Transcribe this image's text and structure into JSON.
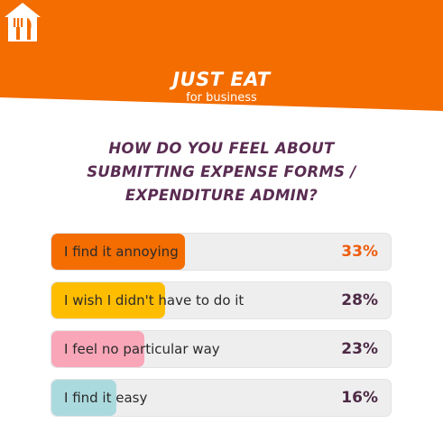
{
  "header": {
    "brand_name": "JUST EAT",
    "brand_sub": "for business",
    "banner_color": "#f36d00"
  },
  "question": {
    "lines": [
      "HOW DO YOU FEEL ABOUT",
      "SUBMITTING EXPENSE FORMS /",
      "EXPENDITURE ADMIN?"
    ]
  },
  "chart_data": {
    "type": "bar",
    "orientation": "horizontal",
    "title": "HOW DO YOU FEEL ABOUT SUBMITTING EXPENSE FORMS / EXPENDITURE ADMIN?",
    "categories": [
      "I find it annoying",
      "I wish I didn't have to do it",
      "I feel no particular way",
      "I find it easy"
    ],
    "values": [
      33,
      28,
      23,
      16
    ],
    "value_labels": [
      "33%",
      "28%",
      "23%",
      "16%"
    ],
    "colors": [
      "#f36d00",
      "#ffbd00",
      "#f9a7b8",
      "#abdade"
    ],
    "value_colors": [
      "#ee5d0d",
      "#4d2a45",
      "#4d2a45",
      "#4d2a45"
    ],
    "xlim": [
      0,
      100
    ],
    "grid": false,
    "legend": "none"
  }
}
